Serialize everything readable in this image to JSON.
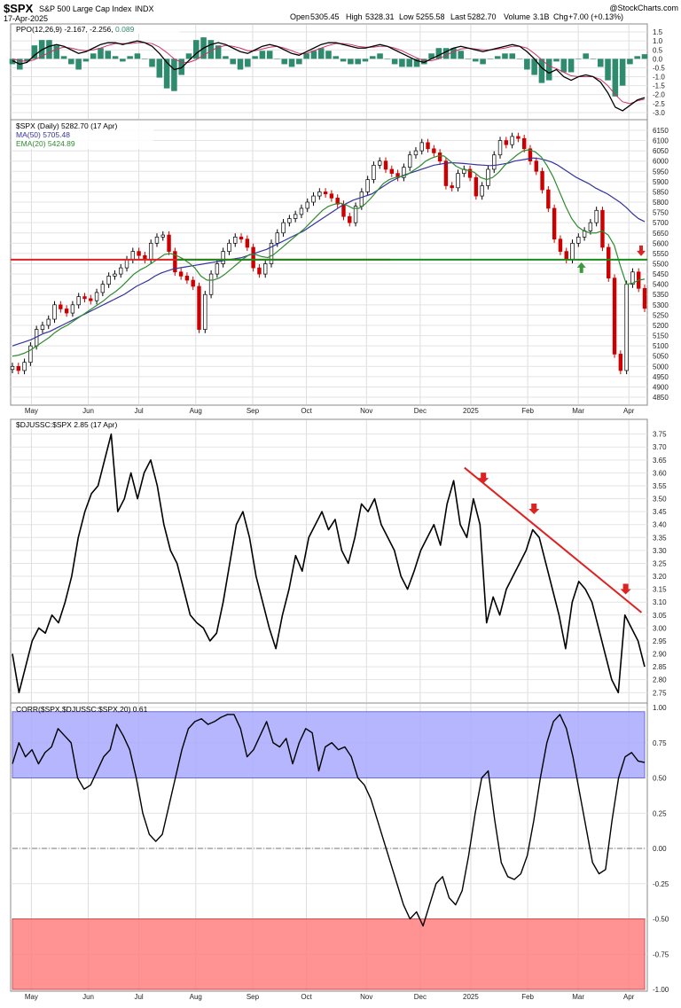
{
  "header": {
    "symbol": "$SPX",
    "name": "S&P 500 Large Cap Index",
    "exchange": "INDX",
    "date": "17-Apr-2025",
    "open_label": "Open",
    "open": "5305.45",
    "high_label": "High",
    "high": "5328.31",
    "low_label": "Low",
    "low": "5255.58",
    "last_label": "Last",
    "last": "5282.70",
    "volume_label": "Volume",
    "volume": "3.1B",
    "chg_label": "Chg",
    "chg": "+7.00 (+0.13%)",
    "credit": "@StockCharts.com",
    "down_arrow": "▼"
  },
  "x_axis": {
    "labels": [
      "May",
      "Jun",
      "Jul",
      "Aug",
      "Sep",
      "Oct",
      "Nov",
      "Dec",
      "2025",
      "Feb",
      "Mar",
      "Apr"
    ],
    "positions": [
      0.03,
      0.12,
      0.2,
      0.29,
      0.38,
      0.465,
      0.56,
      0.645,
      0.725,
      0.815,
      0.895,
      0.975
    ]
  },
  "colors": {
    "up": "#000000",
    "down": "#cc0000",
    "ppo": "#000000",
    "ppo_signal": "#cc3366",
    "histogram": "#2e8b6e",
    "ma50": "#33339e",
    "ema20": "#2e8b2e",
    "support": "#1a8a1a",
    "resistance": "#dd2222",
    "ratio": "#000000",
    "corr_band_high": "#aaaaff",
    "corr_band_low": "#ff8080"
  },
  "chart_data": [
    {
      "type": "line",
      "panel": "ppo",
      "label": "PPO(12,26,9) -2.167, -2.256, 0.089",
      "label_main": "PPO(12,26,9)",
      "label_vals": "-2.167, -2.256,",
      "label_hist": "0.089",
      "ylim": [
        -3.3,
        1.8
      ],
      "yticks": [
        1.5,
        1.0,
        0.5,
        0.0,
        -0.5,
        -1.0,
        -1.5,
        -2.0,
        -2.5,
        -3.0
      ],
      "ytick_labels": [
        "1.5",
        "1.0",
        "0.5",
        "0.0",
        "-0.5",
        "-1.0",
        "-1.5",
        "-2.0",
        "-2.5",
        "-3.0"
      ],
      "ppo": [
        -0.1,
        -0.3,
        -0.2,
        0.2,
        0.5,
        0.7,
        0.8,
        0.7,
        0.5,
        0.3,
        0.4,
        0.6,
        0.8,
        0.9,
        0.9,
        0.8,
        0.9,
        1.0,
        0.9,
        0.7,
        0.3,
        -0.2,
        -0.6,
        -0.5,
        -0.1,
        0.3,
        0.6,
        0.8,
        0.9,
        0.8,
        0.6,
        0.4,
        0.3,
        0.5,
        0.7,
        0.8,
        0.7,
        0.5,
        0.3,
        0.2,
        0.4,
        0.6,
        0.8,
        0.9,
        0.9,
        0.8,
        0.7,
        0.6,
        0.6,
        0.7,
        0.8,
        0.7,
        0.5,
        0.3,
        0.1,
        -0.1,
        -0.2,
        0.0,
        0.2,
        0.4,
        0.6,
        0.7,
        0.6,
        0.5,
        0.4,
        0.5,
        0.6,
        0.7,
        0.8,
        0.7,
        0.4,
        0.0,
        -0.5,
        -0.8,
        -0.6,
        -1.0,
        -1.2,
        -1.0,
        -0.9,
        -1.0,
        -1.3,
        -1.9,
        -2.7,
        -2.9,
        -2.6,
        -2.3,
        -2.17
      ],
      "signal": [
        0.0,
        -0.1,
        -0.15,
        -0.05,
        0.15,
        0.35,
        0.55,
        0.65,
        0.6,
        0.5,
        0.45,
        0.5,
        0.6,
        0.75,
        0.85,
        0.85,
        0.85,
        0.9,
        0.9,
        0.85,
        0.65,
        0.35,
        0.0,
        -0.2,
        -0.2,
        -0.05,
        0.2,
        0.45,
        0.65,
        0.75,
        0.7,
        0.6,
        0.45,
        0.45,
        0.55,
        0.65,
        0.7,
        0.6,
        0.45,
        0.3,
        0.3,
        0.45,
        0.6,
        0.75,
        0.85,
        0.85,
        0.8,
        0.7,
        0.65,
        0.65,
        0.7,
        0.7,
        0.6,
        0.45,
        0.25,
        0.05,
        -0.1,
        -0.1,
        0.0,
        0.2,
        0.4,
        0.55,
        0.6,
        0.55,
        0.5,
        0.5,
        0.55,
        0.6,
        0.7,
        0.7,
        0.6,
        0.3,
        -0.05,
        -0.4,
        -0.55,
        -0.75,
        -0.95,
        -1.0,
        -1.0,
        -1.0,
        -1.15,
        -1.5,
        -2.0,
        -2.4,
        -2.5,
        -2.35,
        -2.256
      ]
    },
    {
      "type": "candlestick",
      "panel": "price",
      "label": "$SPX (Daily) 5282.70 (17 Apr)",
      "ma_label": "MA(50) 5705.48",
      "ema_label": "EMA(20) 5424.89",
      "ylim": [
        4820,
        6180
      ],
      "yticks": [
        6150,
        6100,
        6050,
        6000,
        5950,
        5900,
        5850,
        5800,
        5750,
        5700,
        5650,
        5600,
        5550,
        5500,
        5450,
        5400,
        5350,
        5300,
        5250,
        5200,
        5150,
        5100,
        5050,
        5000,
        4950,
        4900,
        4850
      ],
      "support_level": 5520,
      "closes": [
        5000,
        4980,
        5020,
        5100,
        5180,
        5200,
        5230,
        5300,
        5280,
        5260,
        5300,
        5340,
        5330,
        5320,
        5360,
        5400,
        5440,
        5450,
        5480,
        5520,
        5560,
        5540,
        5520,
        5600,
        5630,
        5640,
        5560,
        5460,
        5440,
        5420,
        5390,
        5180,
        5350,
        5450,
        5500,
        5560,
        5600,
        5630,
        5620,
        5580,
        5480,
        5450,
        5500,
        5600,
        5650,
        5700,
        5720,
        5740,
        5770,
        5800,
        5830,
        5850,
        5840,
        5820,
        5790,
        5730,
        5700,
        5780,
        5850,
        5910,
        5980,
        6000,
        5960,
        5940,
        5920,
        5970,
        6030,
        6050,
        6090,
        6060,
        6040,
        6000,
        5880,
        5870,
        5940,
        5960,
        5920,
        5830,
        5880,
        5960,
        6030,
        6100,
        6080,
        6120,
        6110,
        6060,
        6000,
        5950,
        5860,
        5770,
        5620,
        5560,
        5520,
        5600,
        5630,
        5660,
        5700,
        5760,
        5580,
        5430,
        5060,
        4980,
        5400,
        5460,
        5380,
        5282.7
      ],
      "ma50": [
        5100,
        5110,
        5120,
        5130,
        5145,
        5160,
        5170,
        5185,
        5200,
        5215,
        5230,
        5245,
        5260,
        5275,
        5290,
        5305,
        5320,
        5335,
        5350,
        5370,
        5390,
        5405,
        5420,
        5440,
        5455,
        5465,
        5475,
        5480,
        5485,
        5490,
        5495,
        5500,
        5505,
        5510,
        5515,
        5520,
        5525,
        5530,
        5540,
        5550,
        5560,
        5570,
        5585,
        5600,
        5615,
        5630,
        5645,
        5660,
        5680,
        5700,
        5720,
        5740,
        5760,
        5780,
        5795,
        5810,
        5820,
        5830,
        5840,
        5860,
        5880,
        5900,
        5915,
        5930,
        5940,
        5950,
        5960,
        5970,
        5980,
        5985,
        5990,
        5992,
        5990,
        5988,
        5985,
        5982,
        5980,
        5978,
        5980,
        5985,
        5990,
        6000,
        6005,
        6010,
        6015,
        6012,
        6005,
        5995,
        5980,
        5960,
        5940,
        5920,
        5905,
        5890,
        5870,
        5855,
        5840,
        5820,
        5800,
        5775,
        5745,
        5720,
        5705.48
      ],
      "ema20": [
        5050,
        5055,
        5065,
        5080,
        5100,
        5120,
        5140,
        5165,
        5185,
        5200,
        5220,
        5240,
        5260,
        5280,
        5300,
        5320,
        5345,
        5365,
        5390,
        5420,
        5450,
        5470,
        5485,
        5505,
        5525,
        5545,
        5550,
        5540,
        5525,
        5505,
        5480,
        5440,
        5420,
        5420,
        5430,
        5450,
        5475,
        5500,
        5525,
        5545,
        5545,
        5535,
        5530,
        5545,
        5570,
        5595,
        5620,
        5645,
        5670,
        5700,
        5730,
        5760,
        5780,
        5790,
        5795,
        5785,
        5770,
        5770,
        5790,
        5820,
        5855,
        5890,
        5910,
        5920,
        5925,
        5935,
        5955,
        5975,
        6000,
        6015,
        6025,
        6025,
        6000,
        5975,
        5960,
        5955,
        5945,
        5920,
        5910,
        5920,
        5945,
        5980,
        6005,
        6030,
        6050,
        6055,
        6045,
        6020,
        5975,
        5920,
        5850,
        5780,
        5720,
        5680,
        5660,
        5650,
        5650,
        5660,
        5640,
        5590,
        5490,
        5400,
        5405,
        5420,
        5424.89
      ]
    },
    {
      "type": "line",
      "panel": "ratio",
      "label": "$DJUSSC:$SPX 2.85 (17 Apr)",
      "ylim": [
        2.72,
        3.79
      ],
      "yticks": [
        3.75,
        3.7,
        3.65,
        3.6,
        3.55,
        3.5,
        3.45,
        3.4,
        3.35,
        3.3,
        3.25,
        3.2,
        3.15,
        3.1,
        3.05,
        3.0,
        2.95,
        2.9,
        2.85,
        2.8,
        2.75
      ],
      "ytick_labels": [
        "3.75",
        "3.70",
        "3.65",
        "3.60",
        "3.55",
        "3.50",
        "3.45",
        "3.40",
        "3.35",
        "3.30",
        "3.25",
        "3.20",
        "3.15",
        "3.10",
        "3.05",
        "3.00",
        "2.95",
        "2.90",
        "2.85",
        "2.80",
        "2.75"
      ],
      "values": [
        2.9,
        2.75,
        2.85,
        2.95,
        3.0,
        2.98,
        3.05,
        3.02,
        3.1,
        3.2,
        3.35,
        3.45,
        3.52,
        3.55,
        3.65,
        3.75,
        3.45,
        3.5,
        3.6,
        3.5,
        3.6,
        3.65,
        3.55,
        3.4,
        3.3,
        3.25,
        3.15,
        3.05,
        3.02,
        3.0,
        2.95,
        2.98,
        3.1,
        3.25,
        3.4,
        3.45,
        3.35,
        3.2,
        3.1,
        3.0,
        2.92,
        3.05,
        3.15,
        3.28,
        3.22,
        3.35,
        3.4,
        3.45,
        3.38,
        3.42,
        3.3,
        3.25,
        3.35,
        3.48,
        3.45,
        3.5,
        3.4,
        3.35,
        3.3,
        3.2,
        3.15,
        3.22,
        3.3,
        3.35,
        3.4,
        3.32,
        3.48,
        3.57,
        3.4,
        3.35,
        3.5,
        3.4,
        3.02,
        3.12,
        3.05,
        3.15,
        3.2,
        3.25,
        3.3,
        3.38,
        3.35,
        3.25,
        3.15,
        3.05,
        2.92,
        3.1,
        3.18,
        3.15,
        3.1,
        3.0,
        2.9,
        2.8,
        2.75,
        3.05,
        3.0,
        2.95,
        2.85
      ],
      "trendline": {
        "x": [
          0.715,
          0.995
        ],
        "y": [
          3.62,
          3.06
        ]
      },
      "markers_x": [
        0.745,
        0.825,
        0.97
      ],
      "markers_y": [
        3.56,
        3.44,
        3.13
      ]
    },
    {
      "type": "line",
      "panel": "correlation",
      "label": "CORR($SPX,$DJUSSC:$SPX,20) 0.61",
      "ylim": [
        -1.0,
        1.0
      ],
      "yticks": [
        1.0,
        0.75,
        0.5,
        0.25,
        0.0,
        -0.25,
        -0.5,
        -0.75,
        -1.0
      ],
      "ytick_labels": [
        "1.00",
        "0.75",
        "0.50",
        "0.25",
        "0.00",
        "-0.25",
        "-0.50",
        "-0.75",
        "-1.00"
      ],
      "band_high": [
        0.5,
        0.97
      ],
      "band_low": [
        -1.0,
        -0.5
      ],
      "values": [
        0.6,
        0.75,
        0.65,
        0.7,
        0.6,
        0.68,
        0.72,
        0.85,
        0.8,
        0.75,
        0.5,
        0.42,
        0.45,
        0.55,
        0.65,
        0.7,
        0.88,
        0.8,
        0.7,
        0.5,
        0.25,
        0.1,
        0.05,
        0.1,
        0.3,
        0.5,
        0.7,
        0.85,
        0.9,
        0.92,
        0.88,
        0.9,
        0.93,
        0.95,
        0.95,
        0.85,
        0.65,
        0.7,
        0.8,
        0.9,
        0.75,
        0.72,
        0.78,
        0.6,
        0.75,
        0.85,
        0.82,
        0.55,
        0.72,
        0.75,
        0.7,
        0.72,
        0.65,
        0.5,
        0.45,
        0.35,
        0.2,
        0.05,
        -0.1,
        -0.25,
        -0.4,
        -0.5,
        -0.45,
        -0.55,
        -0.4,
        -0.25,
        -0.2,
        -0.35,
        -0.4,
        -0.3,
        -0.05,
        0.25,
        0.5,
        0.55,
        0.2,
        -0.1,
        -0.2,
        -0.22,
        -0.18,
        -0.05,
        0.2,
        0.5,
        0.75,
        0.9,
        0.95,
        0.85,
        0.65,
        0.4,
        0.15,
        -0.1,
        -0.18,
        -0.15,
        0.2,
        0.5,
        0.65,
        0.68,
        0.62,
        0.61
      ]
    }
  ]
}
